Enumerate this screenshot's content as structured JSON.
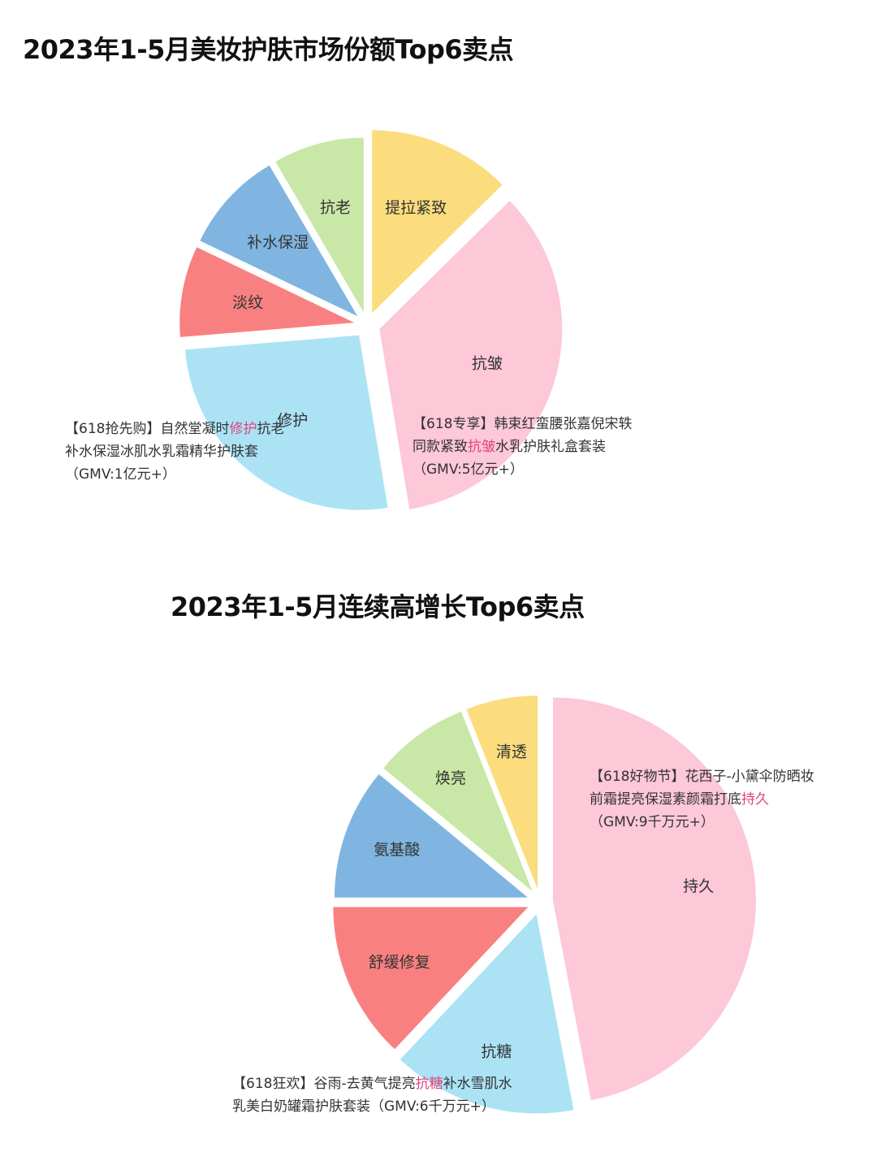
{
  "chart_data": [
    {
      "type": "pie",
      "title": "2023年1-5月美妆护肤市场份额Top6卖点",
      "slices": [
        {
          "label": "提拉紧致",
          "value": 12,
          "color": "#fbdd7e"
        },
        {
          "label": "抗皱",
          "value": 33,
          "color": "#fdc8d8"
        },
        {
          "label": "修护",
          "value": 25,
          "color": "#abe3f5"
        },
        {
          "label": "淡纹",
          "value": 8,
          "color": "#f98080"
        },
        {
          "label": "补水保湿",
          "value": 9,
          "color": "#7fb5e0"
        },
        {
          "label": "抗老",
          "value": 8,
          "color": "#c9e7a6"
        }
      ],
      "annotations": [
        {
          "before": "【618抢先购】自然堂凝时",
          "highlight": "修护",
          "after": "抗老",
          "line2": "补水保湿冰肌水乳霜精华护肤套",
          "line3": "（GMV:1亿元+）"
        },
        {
          "before": "【618专享】韩束红蛮腰张嘉倪宋轶",
          "line2_before": "同款紧致",
          "highlight": "抗皱",
          "line2_after": "水乳护肤礼盒套装",
          "line3": "（GMV:5亿元+）"
        }
      ]
    },
    {
      "type": "pie",
      "title": "2023年1-5月连续高增长Top6卖点",
      "slices": [
        {
          "label": "持久",
          "value": 47,
          "color": "#fdc8d8"
        },
        {
          "label": "抗糖",
          "value": 15,
          "color": "#abe3f5"
        },
        {
          "label": "舒缓修复",
          "value": 13,
          "color": "#f98080"
        },
        {
          "label": "氨基酸",
          "value": 11,
          "color": "#7fb5e0"
        },
        {
          "label": "焕亮",
          "value": 8,
          "color": "#c9e7a6"
        },
        {
          "label": "清透",
          "value": 6,
          "color": "#fbdd7e"
        }
      ],
      "annotations": [
        {
          "before": "【618好物节】花西子-小黛伞防晒妆",
          "line2_before": "前霜提亮保湿素颜霜打底",
          "highlight": "持久",
          "line3": "（GMV:9千万元+）"
        },
        {
          "before": "【618狂欢】谷雨-去黄气提亮",
          "highlight": "抗糖",
          "after": "补水雪肌水",
          "line2": "乳美白奶罐霜护肤套装（GMV:6千万元+）"
        }
      ]
    }
  ]
}
